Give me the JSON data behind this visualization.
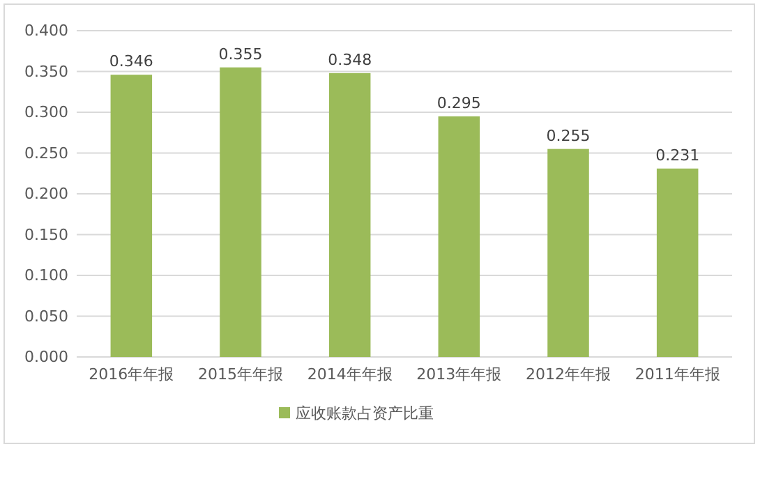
{
  "chart_data": {
    "type": "bar",
    "categories": [
      "2016年年报",
      "2015年年报",
      "2014年年报",
      "2013年年报",
      "2012年年报",
      "2011年年报"
    ],
    "series": [
      {
        "name": "应收账款占资产比重",
        "color": "#9bbb59",
        "values": [
          0.346,
          0.355,
          0.348,
          0.295,
          0.255,
          0.231
        ]
      }
    ],
    "ylim": [
      0,
      0.4
    ],
    "yticks": [
      {
        "value": 0,
        "label": "0.000"
      },
      {
        "value": 0.05,
        "label": "0.050"
      },
      {
        "value": 0.1,
        "label": "0.100"
      },
      {
        "value": 0.15,
        "label": "0.150"
      },
      {
        "value": 0.2,
        "label": "0.200"
      },
      {
        "value": 0.25,
        "label": "0.250"
      },
      {
        "value": 0.3,
        "label": "0.300"
      },
      {
        "value": 0.35,
        "label": "0.350"
      },
      {
        "value": 0.4,
        "label": "0.400"
      }
    ],
    "grid": "y",
    "legend": "bottom",
    "data_labels": true
  }
}
